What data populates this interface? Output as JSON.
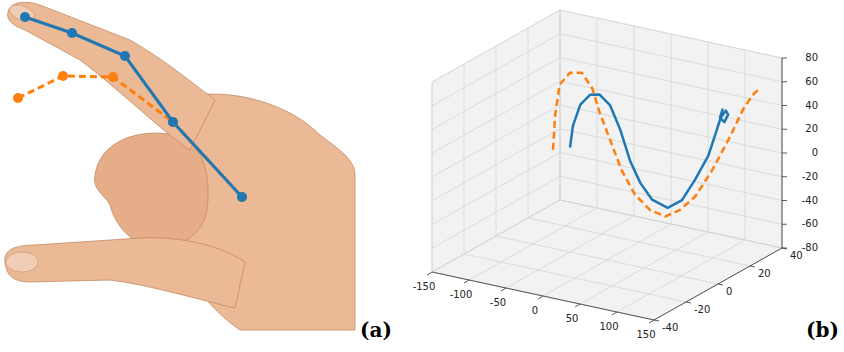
{
  "chart_data": [
    {
      "type": "keypoints",
      "label": "(a)",
      "xlim": [
        0,
        355
      ],
      "ylim": [
        330,
        0
      ],
      "tick_labels": false,
      "series": [
        {
          "color": "#1f77b4",
          "line_style": "solid",
          "marker": "circle",
          "x": [
            25,
            72,
            125,
            173,
            242
          ],
          "y": [
            17,
            33,
            56,
            122,
            197
          ]
        },
        {
          "color": "#ff7f0e",
          "line_style": "dashed",
          "marker": "circle",
          "x": [
            18,
            63,
            113,
            173,
            242
          ],
          "y": [
            98,
            76,
            77,
            122,
            197
          ]
        }
      ]
    },
    {
      "type": "line3d",
      "label": "(b)",
      "grid": true,
      "xlim": [
        -150,
        150
      ],
      "ylim": [
        -40,
        40
      ],
      "zlim": [
        -80,
        80
      ],
      "xticks": [
        -150,
        -100,
        -50,
        0,
        50,
        100,
        150
      ],
      "yticks": [
        -40,
        -20,
        0,
        20,
        40
      ],
      "zticks": [
        -80,
        -60,
        -40,
        -20,
        0,
        20,
        40,
        60,
        80
      ],
      "series": [
        {
          "color": "#1f77b4",
          "line_style": "solid",
          "x": [
            -50,
            -46,
            -36,
            -23,
            -10,
            4,
            18,
            31,
            45,
            61,
            82,
            97,
            110,
            124,
            130,
            132,
            139,
            142,
            137,
            131,
            135
          ],
          "y": [
            0,
            0,
            0,
            0,
            0,
            0,
            0,
            0,
            0,
            0,
            0,
            2,
            4,
            6,
            8,
            10,
            10,
            10,
            10,
            10,
            10
          ],
          "z": [
            8,
            27,
            46,
            56,
            58,
            51,
            32,
            8,
            -9,
            -21,
            -25,
            -18,
            -1,
            20,
            39,
            50,
            57,
            54,
            47,
            50,
            58
          ]
        },
        {
          "color": "#ff7f0e",
          "line_style": "dashed",
          "x": [
            -73,
            -70,
            -64,
            -50,
            -34,
            -20,
            -10,
            4,
            20,
            38,
            58,
            68,
            77,
            87,
            99,
            110,
            119,
            132,
            139
          ],
          "y": [
            0,
            0,
            0,
            0,
            0,
            0,
            0,
            0,
            0,
            0,
            0,
            5,
            10,
            15,
            20,
            25,
            30,
            30,
            30
          ],
          "z": [
            3,
            33,
            59,
            71,
            73,
            62,
            43,
            22,
            -2,
            -20,
            -30,
            -38,
            -35,
            -26,
            -6,
            17,
            40,
            54,
            59
          ]
        }
      ]
    }
  ]
}
